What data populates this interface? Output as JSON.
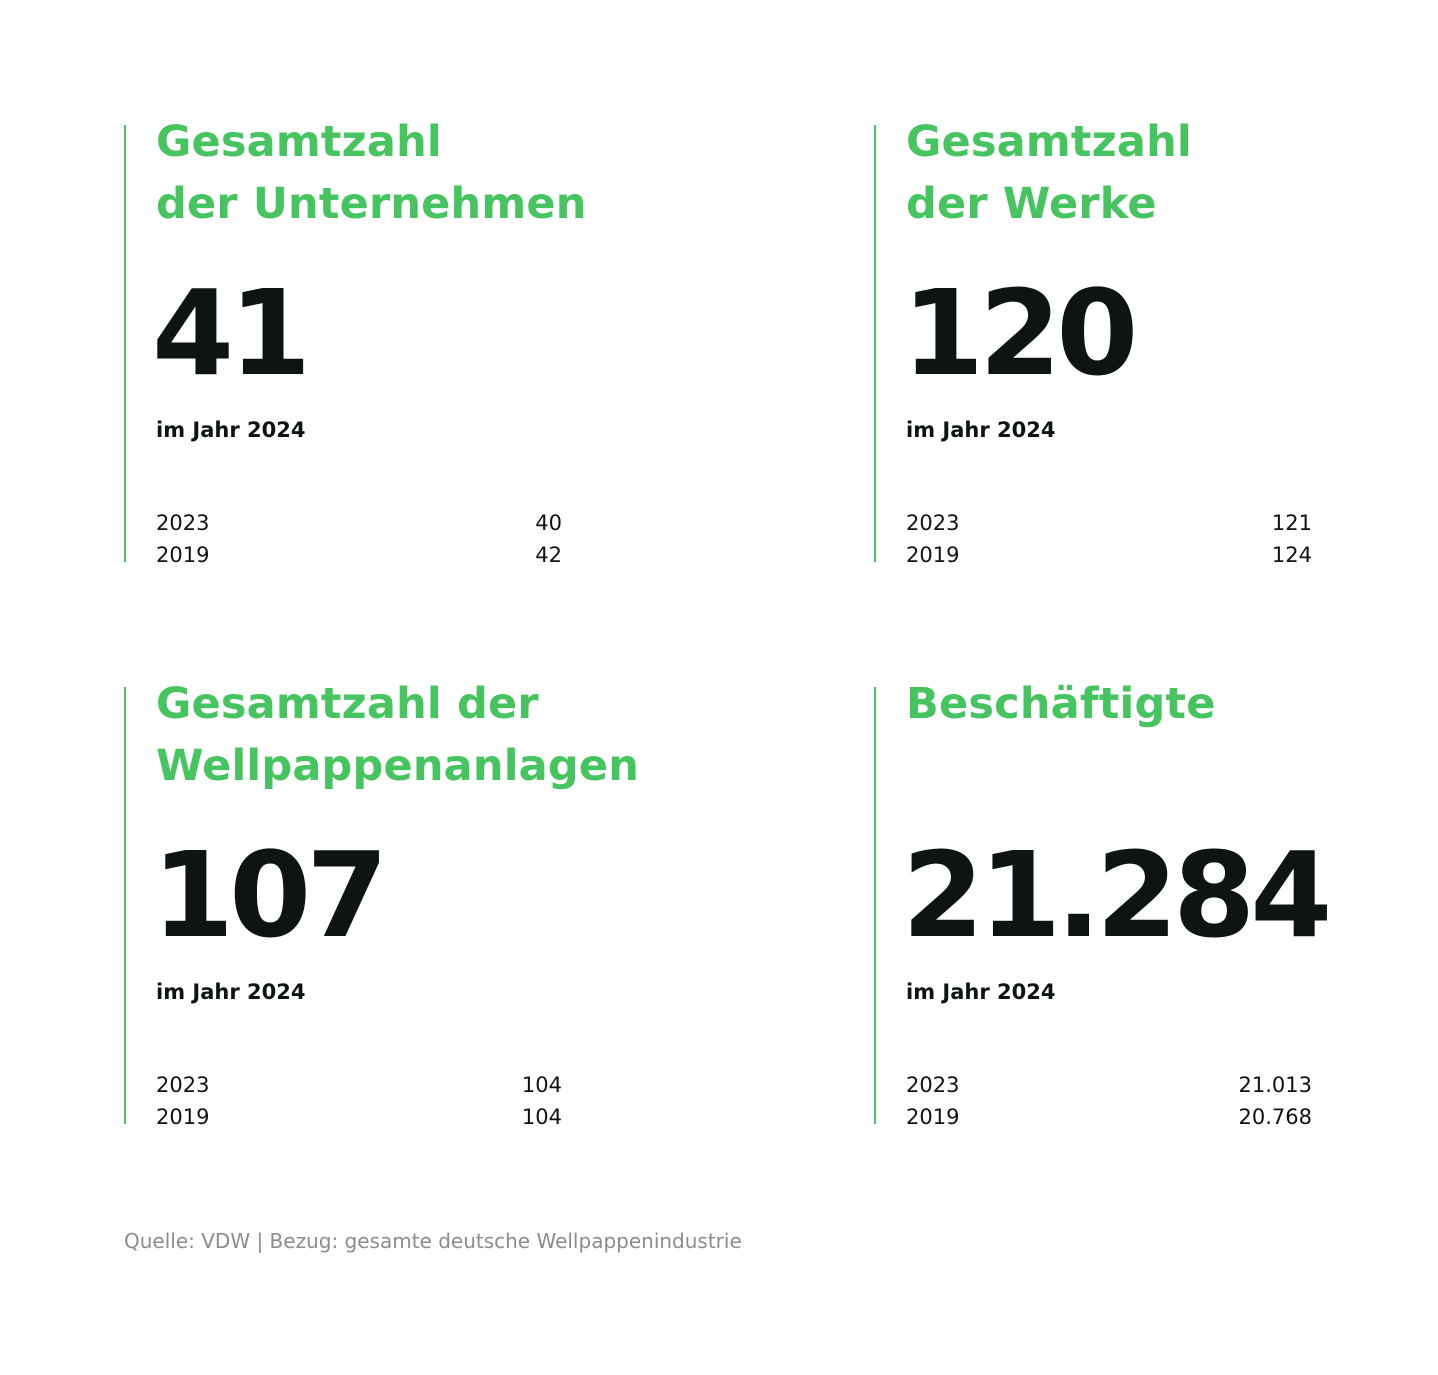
{
  "cards": [
    {
      "title_lines": [
        "Gesamtzahl",
        "der Unternehmen"
      ],
      "value": "41",
      "caption": "im Jahr 2024",
      "history": [
        {
          "year": "2023",
          "value": "40"
        },
        {
          "year": "2019",
          "value": "42"
        }
      ]
    },
    {
      "title_lines": [
        "Gesamtzahl",
        "der Werke"
      ],
      "value": "120",
      "caption": "im Jahr 2024",
      "history": [
        {
          "year": "2023",
          "value": "121"
        },
        {
          "year": "2019",
          "value": "124"
        }
      ]
    },
    {
      "title_lines": [
        "Gesamtzahl der",
        "Wellpappenanlagen"
      ],
      "value": "107",
      "caption": "im Jahr 2024",
      "history": [
        {
          "year": "2023",
          "value": "104"
        },
        {
          "year": "2019",
          "value": "104"
        }
      ]
    },
    {
      "title_lines": [
        "Beschäftigte"
      ],
      "value": "21.284",
      "caption": "im Jahr 2024",
      "history": [
        {
          "year": "2023",
          "value": "21.013"
        },
        {
          "year": "2019",
          "value": "20.768"
        }
      ]
    }
  ],
  "source": "Quelle: VDW | Bezug: gesamte deutsche Wellpappenindustrie",
  "colors": {
    "accent": "#46c45f",
    "text": "#0d1412",
    "muted": "#8c8c8c"
  }
}
